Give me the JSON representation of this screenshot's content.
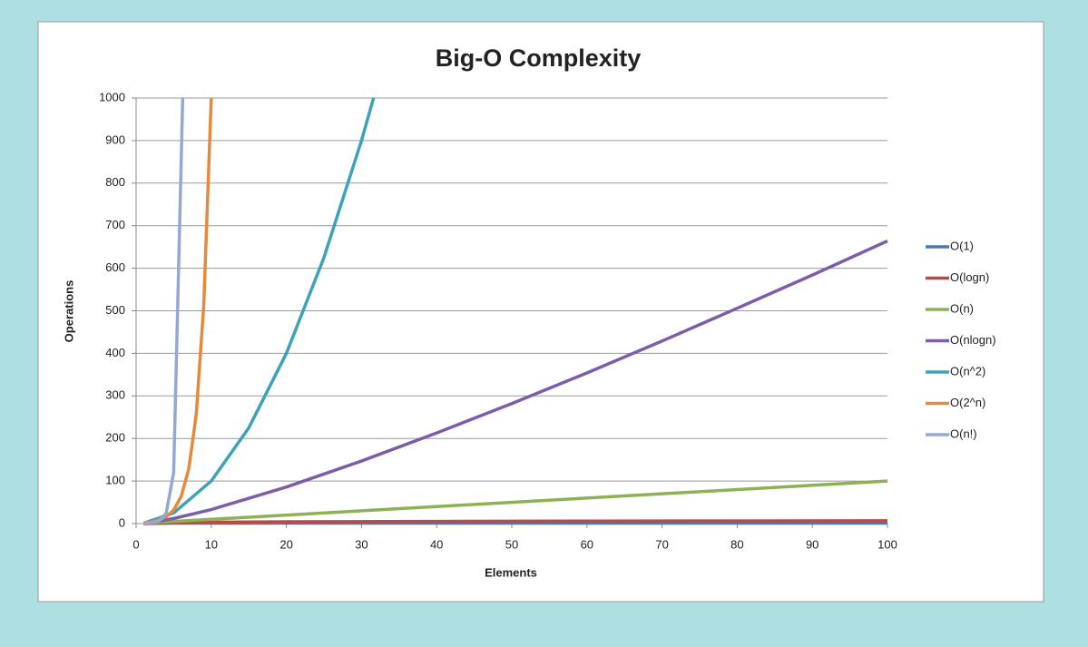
{
  "chart_data": {
    "type": "line",
    "title": "Big-O Complexity",
    "x_label": "Elements",
    "y_label": "Operations",
    "xlim": [
      0,
      100
    ],
    "xticks": [
      0,
      10,
      20,
      30,
      40,
      50,
      60,
      70,
      80,
      90,
      100
    ],
    "ylim": [
      0,
      1000
    ],
    "yticks": [
      0,
      100,
      200,
      300,
      400,
      500,
      600,
      700,
      800,
      900,
      1000
    ],
    "grid": true,
    "legend": "right",
    "series": [
      {
        "name": "O(1)",
        "color": "#4a7ab5",
        "x": [
          1,
          100
        ],
        "values": [
          1,
          1
        ]
      },
      {
        "name": "O(logn)",
        "color": "#b94a48",
        "x": [
          1,
          10,
          20,
          50,
          100
        ],
        "values": [
          0,
          3.3,
          4.3,
          5.6,
          6.6
        ]
      },
      {
        "name": "O(n)",
        "color": "#8db255",
        "x": [
          1,
          100
        ],
        "values": [
          1,
          100
        ]
      },
      {
        "name": "O(nlogn)",
        "color": "#7b5ea7",
        "x": [
          1,
          5,
          10,
          20,
          30,
          40,
          50,
          60,
          70,
          80,
          90,
          100
        ],
        "values": [
          0,
          12,
          33,
          86,
          147,
          213,
          282,
          354,
          429,
          506,
          584,
          664
        ]
      },
      {
        "name": "O(n^2)",
        "color": "#3ea2b9",
        "x": [
          1,
          5,
          10,
          15,
          20,
          25,
          30,
          31.6
        ],
        "values": [
          1,
          25,
          100,
          225,
          400,
          625,
          900,
          1000
        ]
      },
      {
        "name": "O(2^n)",
        "color": "#e58a3a",
        "x": [
          1,
          2,
          3,
          4,
          5,
          6,
          7,
          8,
          9,
          10
        ],
        "values": [
          2,
          4,
          8,
          16,
          32,
          64,
          128,
          256,
          512,
          1000
        ]
      },
      {
        "name": "O(n!)",
        "color": "#93a9d4",
        "x": [
          1,
          2,
          3,
          4,
          5,
          6.2
        ],
        "values": [
          1,
          2,
          6,
          24,
          120,
          1000
        ]
      }
    ]
  }
}
